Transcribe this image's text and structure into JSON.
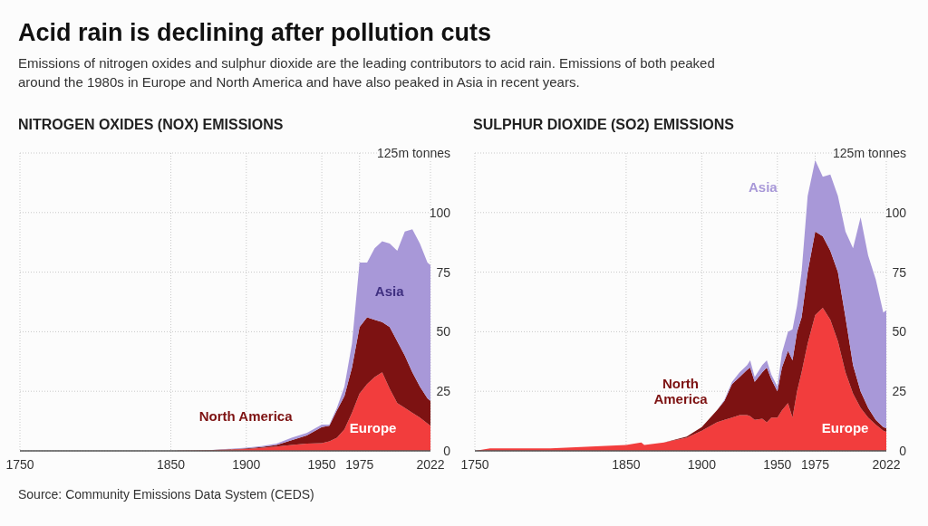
{
  "chart_data": [
    {
      "type": "area",
      "stacked": true,
      "title": "NITROGEN OXIDES (NOX) EMISSIONS",
      "annotations": [
        "Acid rain is declining after pollution cuts",
        "Emissions of nitrogen oxides and sulphur dioxide are the leading contributors to acid rain. Emissions of both peaked around the 1980s in Europe and North America and have also peaked in Asia in recent years.",
        "Source: Community Emissions Data System (CEDS)"
      ],
      "x": [
        1750,
        1800,
        1850,
        1875,
        1900,
        1910,
        1920,
        1930,
        1940,
        1950,
        1955,
        1960,
        1965,
        1970,
        1975,
        1980,
        1985,
        1990,
        1995,
        2000,
        2005,
        2010,
        2015,
        2020,
        2022
      ],
      "series": [
        {
          "name": "Europe",
          "color": "#f23d3d",
          "values": [
            0,
            0,
            0,
            0.2,
            0.8,
            1.2,
            1.8,
            2.5,
            3,
            3.2,
            4,
            5.5,
            9,
            16,
            24,
            28,
            31,
            33,
            26,
            20,
            18,
            16,
            14,
            11.5,
            10.5
          ]
        },
        {
          "name": "North America",
          "color": "#7d1212",
          "values": [
            0,
            0,
            0,
            0.1,
            0.2,
            0.4,
            0.7,
            2,
            3.5,
            6.8,
            6.5,
            11.5,
            14,
            19,
            28,
            28,
            24,
            21,
            26,
            26,
            22,
            17,
            13,
            10.5,
            10.5
          ]
        },
        {
          "name": "Asia",
          "color": "#a898d8",
          "values": [
            0,
            0,
            0,
            0,
            0.3,
            0.4,
            0.5,
            1,
            1,
            1,
            0.5,
            1,
            4,
            10,
            27,
            23,
            30,
            34,
            35,
            38,
            52,
            60,
            60,
            57,
            57
          ]
        }
      ],
      "xlim": [
        1750,
        2022
      ],
      "xticks": [
        1750,
        1850,
        1900,
        1950,
        1975,
        2022
      ],
      "ylim": [
        0,
        125
      ],
      "yticks": [
        0,
        25,
        50,
        75,
        100,
        {
          "value": 125,
          "label": "125m tonnes"
        }
      ],
      "grid": true
    },
    {
      "type": "area",
      "stacked": true,
      "title": "SULPHUR DIOXIDE (SO2) EMISSIONS",
      "x": [
        1750,
        1760,
        1800,
        1850,
        1860,
        1862,
        1875,
        1890,
        1900,
        1910,
        1915,
        1920,
        1925,
        1930,
        1932,
        1935,
        1940,
        1943,
        1946,
        1950,
        1953,
        1957,
        1960,
        1963,
        1966,
        1970,
        1975,
        1980,
        1985,
        1990,
        1995,
        2000,
        2005,
        2010,
        2015,
        2020,
        2022
      ],
      "series": [
        {
          "name": "Europe",
          "color": "#f23d3d",
          "values": [
            0,
            1,
            1,
            2.5,
            3.5,
            2.5,
            3.5,
            5.5,
            8.5,
            12,
            13,
            14,
            15,
            15,
            14.5,
            13,
            13.5,
            12,
            14,
            14,
            17,
            20,
            14,
            25,
            33,
            45,
            57,
            60,
            55,
            46,
            33,
            24,
            18,
            14,
            11,
            8.5,
            8
          ]
        },
        {
          "name": "North America",
          "color": "#7d1212",
          "values": [
            0,
            0,
            0,
            0,
            0,
            0,
            0,
            0.5,
            1.5,
            5,
            8,
            14,
            16,
            19,
            20.5,
            16,
            19.5,
            23,
            16,
            11,
            18,
            22,
            24,
            25,
            23,
            30,
            35,
            30,
            29,
            29,
            23,
            12,
            7,
            4,
            2,
            1.5,
            1.5
          ]
        },
        {
          "name": "Asia",
          "color": "#a898d8",
          "values": [
            0,
            0,
            0,
            0,
            0,
            0,
            0,
            0,
            0,
            0,
            0.5,
            1,
            2,
            2,
            3,
            2,
            3,
            3,
            2,
            2,
            6,
            8,
            13,
            11,
            19,
            32,
            30,
            25,
            32,
            32,
            36,
            49,
            73,
            64,
            59,
            48,
            49.5
          ]
        }
      ],
      "xlim": [
        1750,
        2022
      ],
      "xticks": [
        1750,
        1850,
        1900,
        1950,
        1975,
        2022
      ],
      "ylim": [
        0,
        125
      ],
      "yticks": [
        0,
        25,
        50,
        75,
        100,
        {
          "value": 125,
          "label": "125m tonnes"
        }
      ],
      "grid": true
    }
  ]
}
